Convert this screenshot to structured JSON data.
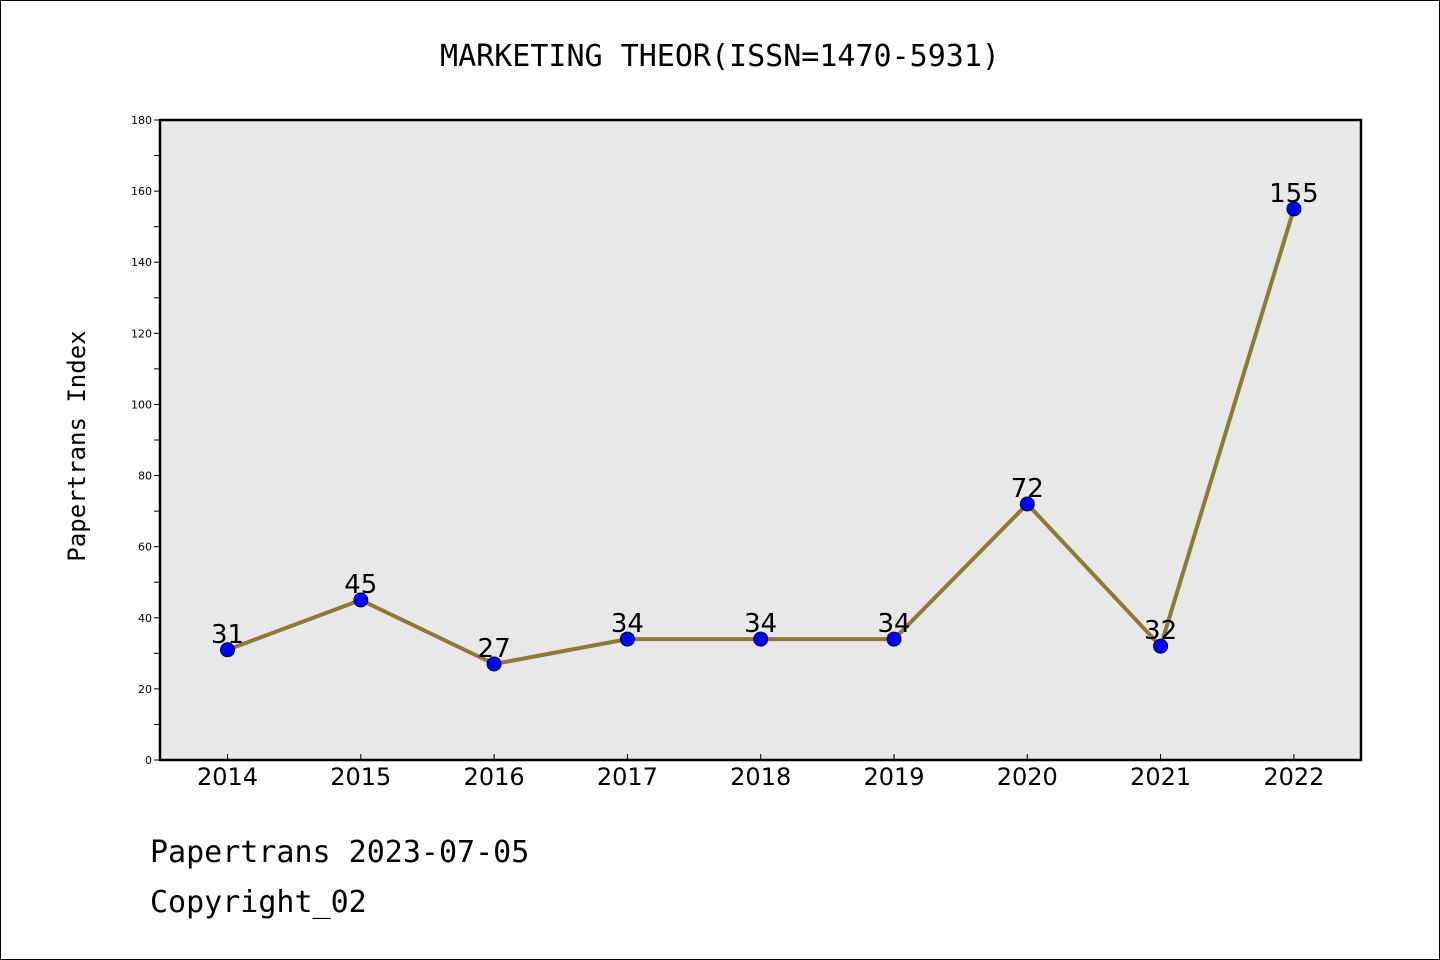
{
  "chart_data": {
    "type": "line",
    "title": "MARKETING THEOR(ISSN=1470-5931)",
    "xlabel": "",
    "ylabel": "Papertrans Index",
    "categories": [
      "2014",
      "2015",
      "2016",
      "2017",
      "2018",
      "2019",
      "2020",
      "2021",
      "2022"
    ],
    "series": [
      {
        "values": [
          31,
          45,
          27,
          34,
          34,
          34,
          72,
          32,
          155
        ]
      }
    ],
    "ylim": [
      0,
      180
    ],
    "yticks": [
      0,
      20,
      40,
      60,
      80,
      100,
      120,
      140,
      160,
      180
    ],
    "grid": false,
    "legend": "none",
    "colors": {
      "line": "#8c7a35",
      "marker": "#0000ff",
      "plot_background": "#e8e8e8"
    }
  },
  "footer": {
    "line1": "Papertrans 2023-07-05",
    "line2": "Copyright_02"
  }
}
